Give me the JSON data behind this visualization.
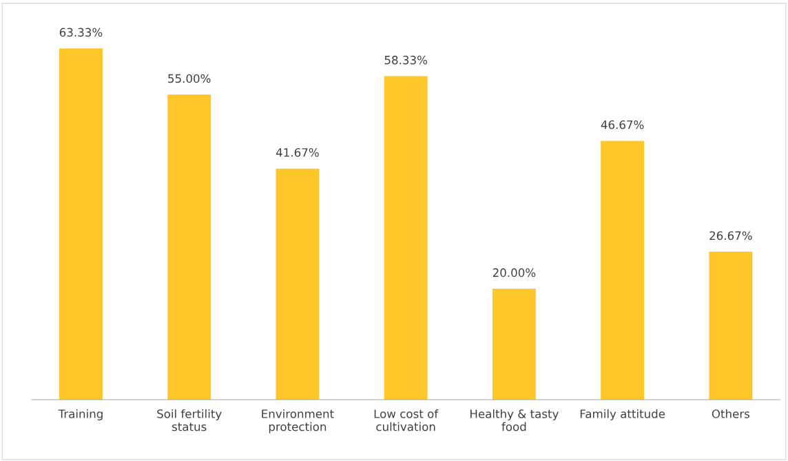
{
  "chart_data": {
    "type": "bar",
    "categories": [
      "Training",
      "Soil fertility status",
      "Environment protection",
      "Low cost of cultivation",
      "Healthy & tasty food",
      "Family attitude",
      "Others"
    ],
    "values": [
      63.33,
      55.0,
      41.67,
      58.33,
      20.0,
      46.67,
      26.67
    ],
    "value_labels": [
      "63.33%",
      "55.00%",
      "41.67%",
      "58.33%",
      "20.00%",
      "46.67%",
      "26.67%"
    ],
    "color": "#ffc629",
    "grid": false,
    "legend": false
  }
}
